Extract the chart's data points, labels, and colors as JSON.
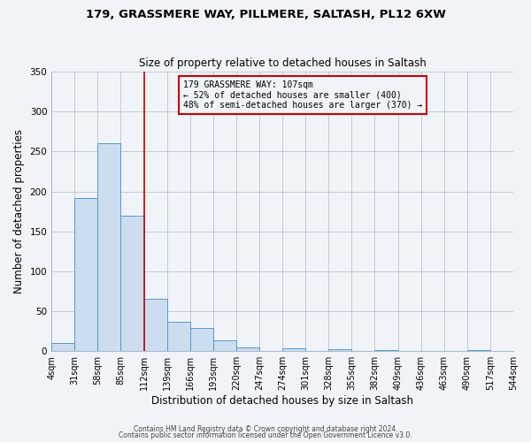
{
  "title": "179, GRASSMERE WAY, PILLMERE, SALTASH, PL12 6XW",
  "subtitle": "Size of property relative to detached houses in Saltash",
  "xlabel": "Distribution of detached houses by size in Saltash",
  "ylabel": "Number of detached properties",
  "bin_edges": [
    4,
    31,
    58,
    85,
    112,
    139,
    166,
    193,
    220,
    247,
    274,
    301,
    328,
    355,
    382,
    409,
    436,
    463,
    490,
    517,
    544
  ],
  "bar_heights": [
    10,
    192,
    260,
    170,
    65,
    37,
    29,
    13,
    5,
    0,
    4,
    0,
    2,
    0,
    1,
    0,
    0,
    0,
    1,
    0
  ],
  "bar_color": "#ccddf0",
  "bar_edge_color": "#5599cc",
  "property_line_x": 112,
  "property_line_color": "#cc0000",
  "annotation_line1": "179 GRASSMERE WAY: 107sqm",
  "annotation_line2": "← 52% of detached houses are smaller (400)",
  "annotation_line3": "48% of semi-detached houses are larger (370) →",
  "annotation_box_color": "#cc0000",
  "background_color": "#f0f4f8",
  "tick_labels": [
    "4sqm",
    "31sqm",
    "58sqm",
    "85sqm",
    "112sqm",
    "139sqm",
    "166sqm",
    "193sqm",
    "220sqm",
    "247sqm",
    "274sqm",
    "301sqm",
    "328sqm",
    "355sqm",
    "382sqm",
    "409sqm",
    "436sqm",
    "463sqm",
    "490sqm",
    "517sqm",
    "544sqm"
  ],
  "ylim": [
    0,
    350
  ],
  "yticks": [
    0,
    50,
    100,
    150,
    200,
    250,
    300,
    350
  ],
  "footnote1": "Contains HM Land Registry data © Crown copyright and database right 2024.",
  "footnote2": "Contains public sector information licensed under the Open Government Licence v3.0."
}
